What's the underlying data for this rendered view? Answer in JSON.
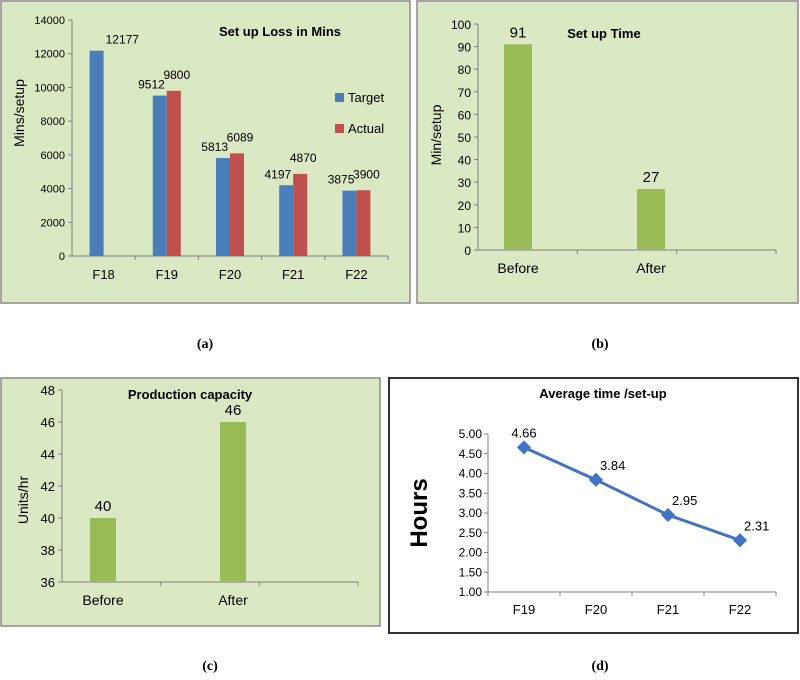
{
  "captions": {
    "a": "(a)",
    "b": "(b)",
    "c": "(c)",
    "d": "(d)"
  },
  "colors": {
    "panel_green": "#dbe8c4",
    "panel_border": "#8a8a8a",
    "target_blue": "#4a7ebb",
    "actual_red": "#c0504d",
    "bar_green": "#9bbb59",
    "line_blue": "#4472c4"
  },
  "chart_data": [
    {
      "id": "a",
      "type": "bar",
      "title": "Set up Loss in Mins",
      "ylabel": "Mins/setup",
      "xlabel": "",
      "ylim": [
        0,
        14000
      ],
      "yticks": [
        0,
        2000,
        4000,
        6000,
        8000,
        10000,
        12000,
        14000
      ],
      "categories": [
        "F18",
        "F19",
        "F20",
        "F21",
        "F22"
      ],
      "series": [
        {
          "name": "Target",
          "values": [
            12177,
            9512,
            5813,
            4197,
            3875
          ]
        },
        {
          "name": "Actual",
          "values": [
            null,
            9800,
            6089,
            4870,
            3900
          ]
        }
      ],
      "legend": "right"
    },
    {
      "id": "b",
      "type": "bar",
      "title": "Set up Time",
      "ylabel": "Min/setup",
      "xlabel": "",
      "ylim": [
        0,
        100
      ],
      "yticks": [
        0,
        10,
        20,
        30,
        40,
        50,
        60,
        70,
        80,
        90,
        100
      ],
      "categories": [
        "Before",
        "After"
      ],
      "values": [
        91,
        27
      ]
    },
    {
      "id": "c",
      "type": "bar",
      "title": "Production capacity",
      "ylabel": "Units/hr",
      "xlabel": "",
      "ylim": [
        36,
        48
      ],
      "yticks": [
        36,
        38,
        40,
        42,
        44,
        46,
        48
      ],
      "categories": [
        "Before",
        "After"
      ],
      "values": [
        40,
        46
      ]
    },
    {
      "id": "d",
      "type": "line",
      "title": "Average time /set-up",
      "ylabel": "Hours",
      "xlabel": "",
      "ylim": [
        1.0,
        5.0
      ],
      "yticks": [
        "1.00",
        "1.50",
        "2.00",
        "2.50",
        "3.00",
        "3.50",
        "4.00",
        "4.50",
        "5.00"
      ],
      "categories": [
        "F19",
        "F20",
        "F21",
        "F22"
      ],
      "values": [
        4.66,
        3.84,
        2.95,
        2.31
      ]
    }
  ]
}
